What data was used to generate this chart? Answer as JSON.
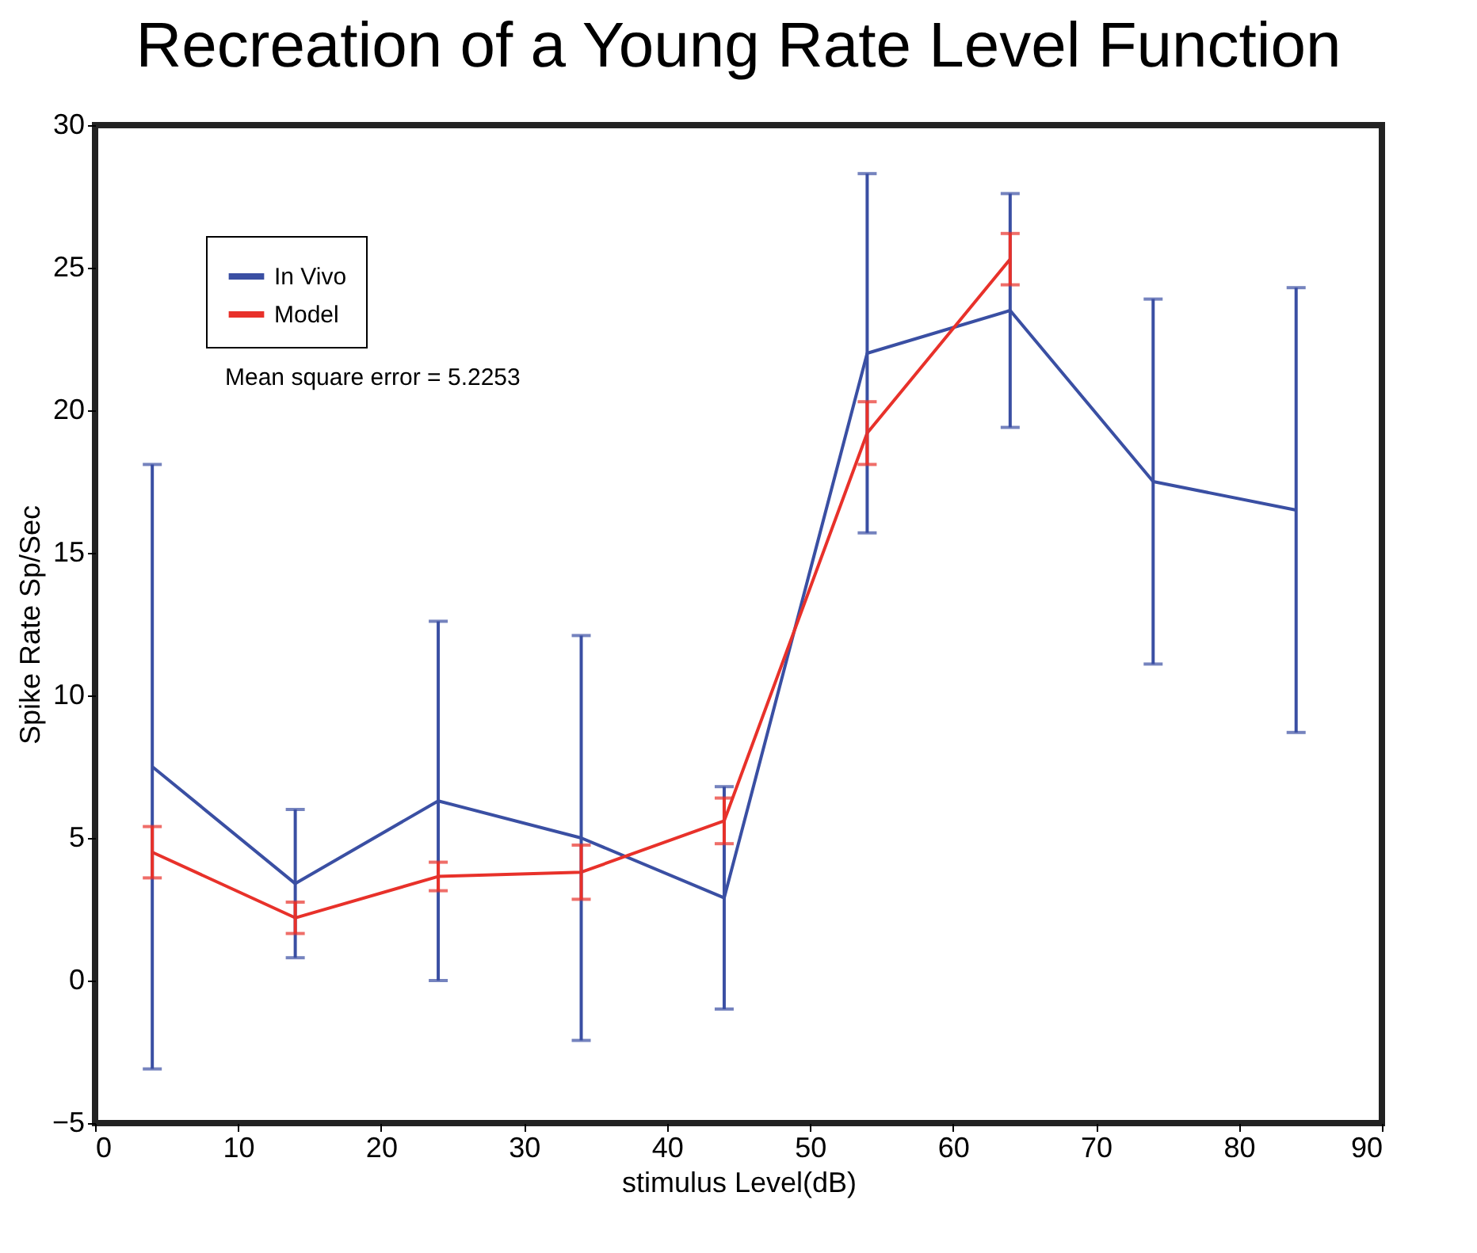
{
  "chart_data": {
    "type": "line",
    "title": "Recreation of a Young Rate Level Function",
    "xlabel": "stimulus Level(dB)",
    "ylabel": "Spike Rate Sp/Sec",
    "x": [
      4,
      14,
      24,
      34,
      44,
      54,
      64,
      74,
      84
    ],
    "series": [
      {
        "name": "In Vivo",
        "color": "#3a4fa3",
        "values": [
          7.5,
          3.4,
          6.3,
          5.0,
          2.9,
          22.0,
          23.5,
          17.5,
          16.5
        ],
        "errors": [
          10.6,
          2.6,
          6.3,
          7.1,
          3.9,
          6.3,
          4.1,
          6.4,
          7.8
        ]
      },
      {
        "name": "Model",
        "color": "#e8312a",
        "values": [
          4.5,
          2.2,
          3.65,
          3.8,
          5.6,
          19.2,
          25.3,
          null,
          null
        ],
        "errors": [
          0.9,
          0.55,
          0.5,
          0.95,
          0.8,
          1.1,
          0.9,
          null,
          null
        ]
      }
    ],
    "annotations": [
      "Mean square error = 5.2253"
    ],
    "xlim": [
      0,
      90
    ],
    "xticks": [
      0,
      10,
      20,
      30,
      40,
      50,
      60,
      70,
      80,
      90
    ],
    "ylim": [
      -5,
      30
    ],
    "yticks": [
      -5,
      0,
      5,
      10,
      15,
      20,
      25,
      30
    ],
    "grid": false,
    "legend": "top left",
    "marker": "none",
    "line_style": "solid"
  }
}
